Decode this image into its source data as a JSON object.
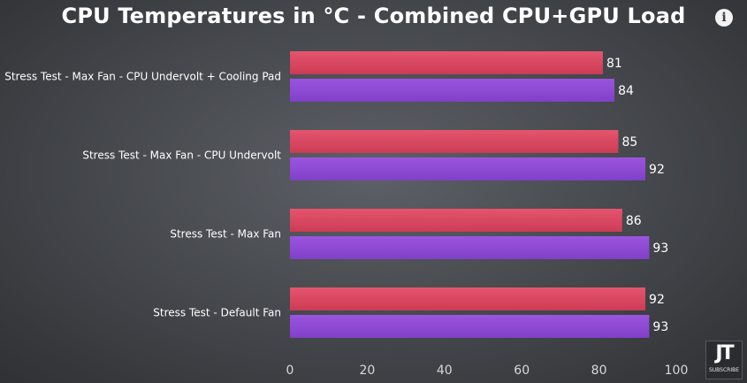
{
  "chart_data": {
    "type": "bar",
    "orientation": "horizontal",
    "title": "CPU Temperatures in °C - Combined CPU+GPU Load",
    "categories": [
      "Stress Test - Max Fan - CPU Undervolt + Cooling Pad",
      "Stress Test - Max Fan - CPU Undervolt",
      "Stress Test - Max Fan",
      "Stress Test - Default Fan"
    ],
    "series": [
      {
        "values": [
          81,
          85,
          86,
          92
        ],
        "color": "#d9455f"
      },
      {
        "values": [
          84,
          92,
          93,
          93
        ],
        "color": "#8e47d3"
      }
    ],
    "xlim": [
      0,
      100
    ],
    "xticks": [
      0,
      20,
      40,
      60,
      80,
      100
    ],
    "grid": false,
    "legend": "none"
  },
  "icons": {
    "info": "info-icon",
    "logo": "jt-logo"
  },
  "logo": {
    "mark": "JT",
    "sub": "SUBSCRIBE"
  }
}
